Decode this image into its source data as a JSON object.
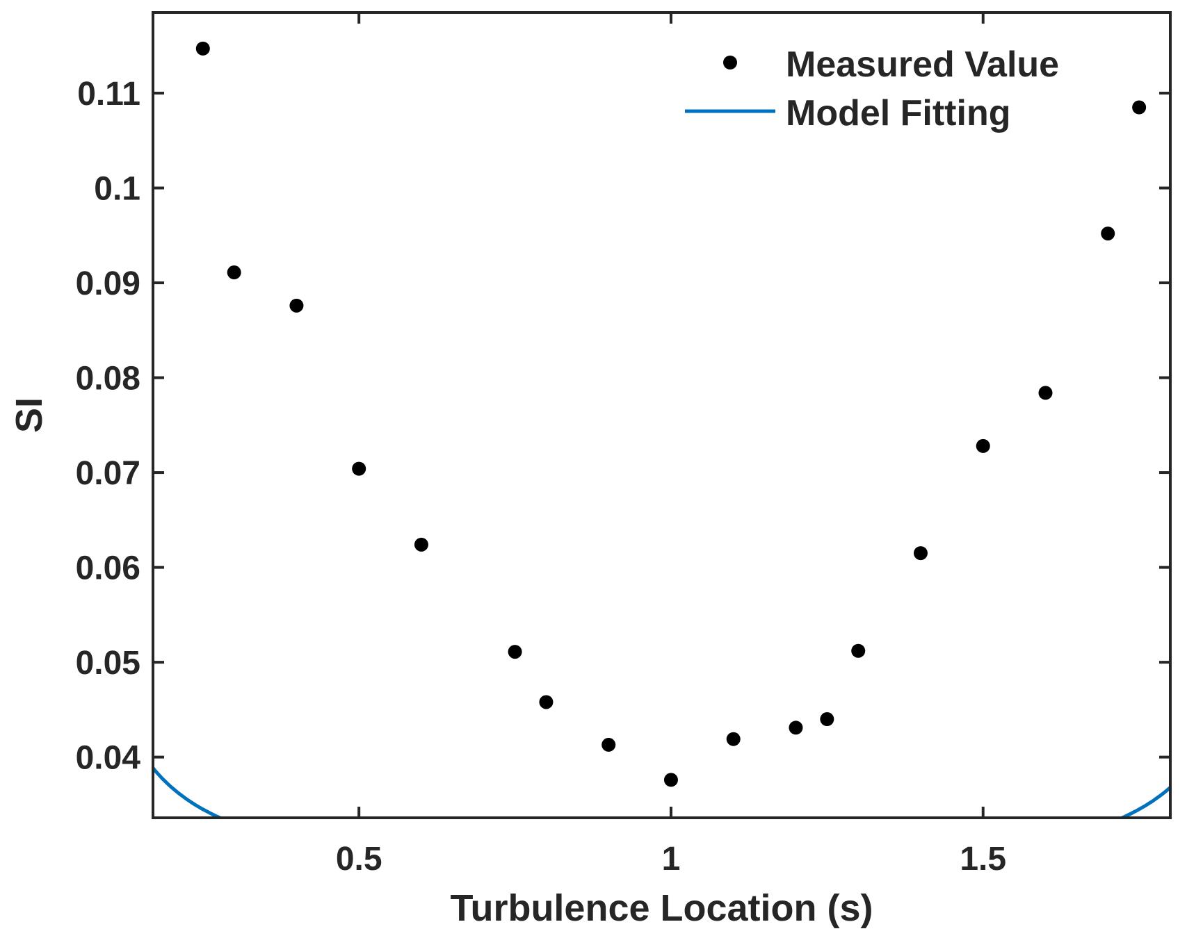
{
  "chart_data": {
    "type": "scatter",
    "title": "",
    "xlabel": "Turbulence Location (s)",
    "ylabel": "SI",
    "xlim": [
      0.17,
      1.8
    ],
    "ylim": [
      0.0336,
      0.1185
    ],
    "xticks": [
      0.5,
      1,
      1.5
    ],
    "xtick_labels": [
      "0.5",
      "1",
      "1.5"
    ],
    "yticks": [
      0.04,
      0.05,
      0.06,
      0.07,
      0.08,
      0.09,
      0.1,
      0.11
    ],
    "ytick_labels": [
      "0.04",
      "0.05",
      "0.06",
      "0.07",
      "0.08",
      "0.09",
      "0.1",
      "0.11"
    ],
    "grid": false,
    "legend_position": "top-right",
    "series": [
      {
        "name": "Measured Value",
        "kind": "scatter",
        "color": "#000000",
        "x": [
          0.25,
          0.3,
          0.4,
          0.5,
          0.6,
          0.75,
          0.8,
          0.9,
          1.0,
          1.1,
          1.2,
          1.25,
          1.3,
          1.4,
          1.5,
          1.6,
          1.7,
          1.75
        ],
        "y": [
          0.1147,
          0.0911,
          0.0876,
          0.0704,
          0.0624,
          0.0511,
          0.0458,
          0.0413,
          0.0376,
          0.0419,
          0.0431,
          0.044,
          0.0512,
          0.0615,
          0.0728,
          0.0784,
          0.0952,
          0.1085
        ]
      },
      {
        "name": "Model Fitting",
        "kind": "line",
        "color": "#0072BD",
        "model": {
          "a": 0.00468,
          "b": 0.0238,
          "vertex": 1.0
        },
        "x_range": [
          0.17,
          1.8
        ]
      }
    ]
  }
}
